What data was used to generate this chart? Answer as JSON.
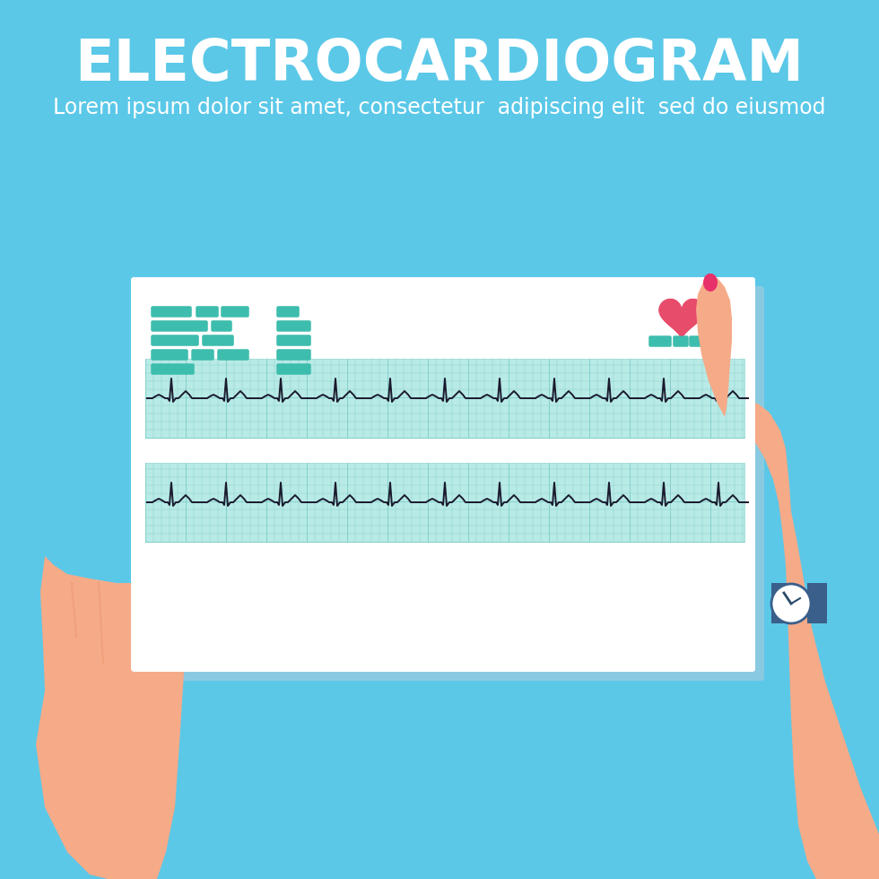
{
  "background_color": "#5BC8E8",
  "title": "ELECTROCARDIOGRAM",
  "subtitle": "Lorem ipsum dolor sit amet, consectetur  adipiscing elit  sed do eiusmod",
  "title_color": "#FFFFFF",
  "title_fontsize": 46,
  "subtitle_fontsize": 17,
  "paper_color": "#FFFFFF",
  "grid_color": "#B8EAE6",
  "grid_line_color": "#7DCDC8",
  "ecg_color": "#1A1A2E",
  "teal_color": "#3DBDAD",
  "heart_color": "#E84C6B",
  "skin_color": "#F5AA88",
  "skin_mid": "#EF9870",
  "skin_dark": "#E08860",
  "nail_color": "#E8306A",
  "watch_band": "#3A5F8A",
  "watch_face": "#FFFFFF",
  "shadow_color": "#AACCDD"
}
